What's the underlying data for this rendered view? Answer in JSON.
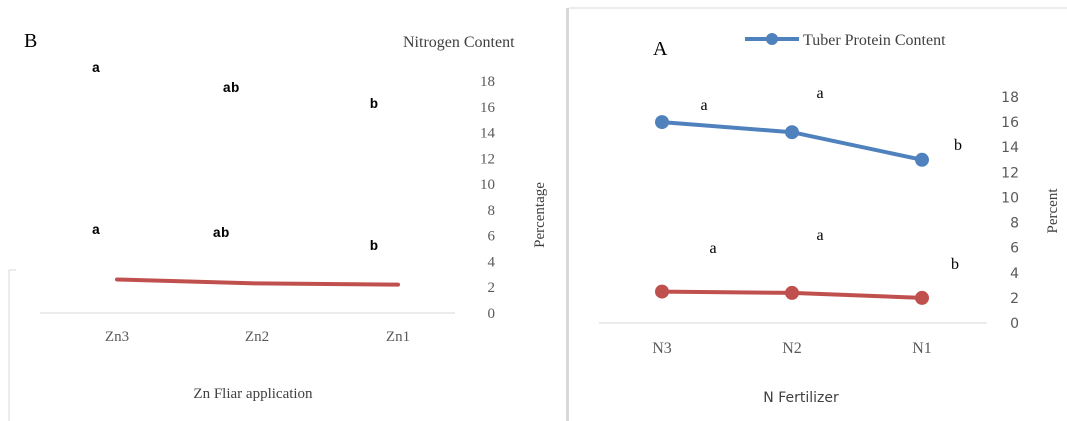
{
  "chart_data": [
    {
      "type": "line",
      "panel_letter": "B",
      "legend": "Nitrogen Content",
      "xlabel": "Zn Fliar application",
      "ylabel": "Percentage",
      "categories": [
        "Zn3",
        "Zn2",
        "Zn1"
      ],
      "ylim": [
        0,
        18
      ],
      "yticks": [
        0,
        2,
        4,
        6,
        8,
        10,
        12,
        14,
        16,
        18
      ],
      "series": [
        {
          "name": "Nitrogen Content",
          "color": "#c0504d",
          "values": [
            2.6,
            2.3,
            2.2
          ]
        }
      ],
      "annotations_upper": [
        "a",
        "ab",
        "b"
      ],
      "annotations_lower": [
        "a",
        "ab",
        "b"
      ]
    },
    {
      "type": "line",
      "panel_letter": "A",
      "legend": "Tuber Protein Content",
      "xlabel": "N Fertilizer",
      "ylabel": "Percent",
      "categories": [
        "N3",
        "N2",
        "N1"
      ],
      "ylim": [
        0,
        18
      ],
      "yticks": [
        0,
        2,
        4,
        6,
        8,
        10,
        12,
        14,
        16,
        18
      ],
      "series": [
        {
          "name": "Tuber Protein Content",
          "color": "#4f81bd",
          "values": [
            16.0,
            15.2,
            13.0
          ]
        },
        {
          "color": "#c0504d",
          "values": [
            2.5,
            2.4,
            2.0
          ]
        }
      ],
      "annotations_upper": [
        "a",
        "a",
        "b"
      ],
      "annotations_lower": [
        "a",
        "a",
        "b"
      ]
    }
  ]
}
